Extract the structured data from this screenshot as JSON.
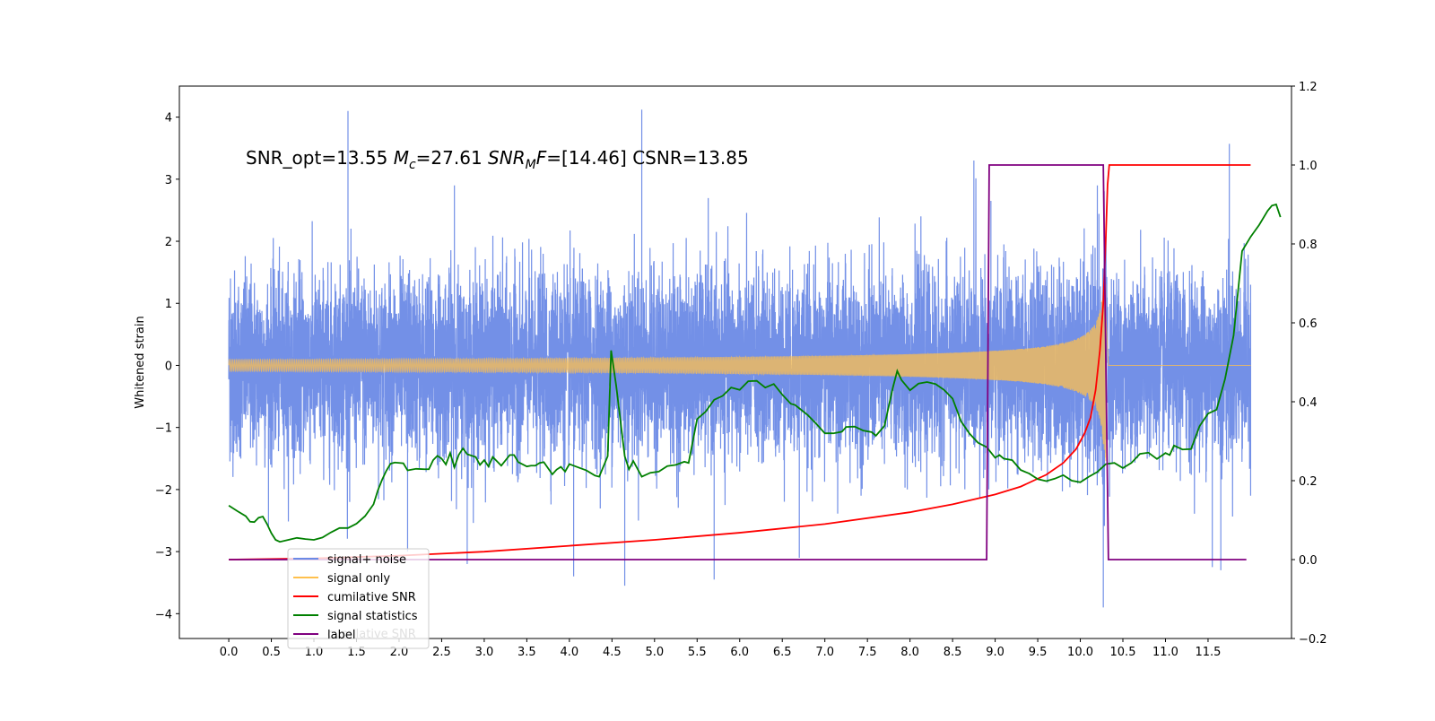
{
  "chart_data": {
    "type": "line",
    "title": "",
    "xlabel": "",
    "ylabel": "Whitened strain",
    "ylabel_right": "",
    "xlim": [
      -0.58,
      12.48
    ],
    "ylim": [
      -4.4,
      4.5
    ],
    "ylim_right": [
      -0.2,
      1.2
    ],
    "x_ticks": [
      "0.0",
      "0.5",
      "1.0",
      "1.5",
      "2.0",
      "2.5",
      "3.0",
      "3.5",
      "4.0",
      "4.5",
      "5.0",
      "5.5",
      "6.0",
      "6.5",
      "7.0",
      "7.5",
      "8.0",
      "8.5",
      "9.0",
      "9.5",
      "10.0",
      "10.5",
      "11.0",
      "11.5"
    ],
    "y_ticks_left": [
      "-4",
      "-3",
      "-2",
      "-1",
      "0",
      "1",
      "2",
      "3",
      "4"
    ],
    "y_ticks_right": [
      "-0.2",
      "0.0",
      "0.2",
      "0.4",
      "0.6",
      "0.8",
      "1.0",
      "1.2"
    ],
    "grid": false,
    "legend_position": "lower-left",
    "annotation": {
      "prefix": "SNR_opt=13.55",
      "mc_symbol": "M",
      "mc_sub": "c",
      "mc_value": "=27.61",
      "snr_symbol": "SNR",
      "snr_sub": "M",
      "snr_f": "F",
      "snr_value": "=[14.46] CSNR=13.85"
    },
    "series": [
      {
        "name": "signal+ noise",
        "color": "#6b8ae6",
        "axis": "left",
        "description_of_data": "broadband noise plus injected chirp; envelope approx ±2, extreme spikes",
        "spikes": [
          [
            0.02,
            1.4
          ],
          [
            0.03,
            -1.4
          ],
          [
            1.4,
            4.1
          ],
          [
            1.42,
            -2.2
          ],
          [
            2.1,
            -3.0
          ],
          [
            2.65,
            2.9
          ],
          [
            2.8,
            -3.2
          ],
          [
            4.05,
            -3.4
          ],
          [
            4.85,
            4.12
          ],
          [
            4.65,
            -3.55
          ],
          [
            5.7,
            -3.45
          ],
          [
            6.7,
            -3.1
          ],
          [
            8.75,
            3.3
          ],
          [
            8.95,
            2.65
          ],
          [
            10.2,
            2.9
          ],
          [
            10.27,
            -3.9
          ],
          [
            10.3,
            1.9
          ],
          [
            11.75,
            3.57
          ],
          [
            11.65,
            -3.3
          ],
          [
            11.55,
            -3.25
          ],
          [
            12.0,
            1.3
          ],
          [
            12.0,
            -2.1
          ]
        ]
      },
      {
        "name": "signal only",
        "color": "#ffc04d",
        "axis": "left",
        "chirp": {
          "t_start": 0.0,
          "t_merge": 10.3,
          "t_end": 12.0,
          "peak_amplitude": 1.55
        }
      },
      {
        "name": "cumilative SNR",
        "color": "#ff0000",
        "axis": "right",
        "points": [
          [
            0.0,
            0.0
          ],
          [
            1.0,
            0.003
          ],
          [
            2.0,
            0.01
          ],
          [
            3.0,
            0.02
          ],
          [
            4.0,
            0.035
          ],
          [
            5.0,
            0.05
          ],
          [
            6.0,
            0.068
          ],
          [
            7.0,
            0.09
          ],
          [
            8.0,
            0.12
          ],
          [
            8.5,
            0.14
          ],
          [
            9.0,
            0.165
          ],
          [
            9.3,
            0.185
          ],
          [
            9.6,
            0.215
          ],
          [
            9.8,
            0.245
          ],
          [
            9.95,
            0.28
          ],
          [
            10.05,
            0.32
          ],
          [
            10.12,
            0.36
          ],
          [
            10.18,
            0.43
          ],
          [
            10.23,
            0.53
          ],
          [
            10.27,
            0.65
          ],
          [
            10.3,
            0.82
          ],
          [
            10.32,
            0.95
          ],
          [
            10.34,
            1.0
          ],
          [
            12.0,
            1.0
          ]
        ]
      },
      {
        "name": "signal statistics",
        "color": "#008000",
        "axis": "right",
        "points": [
          [
            0.0,
            0.137
          ],
          [
            0.1,
            0.123
          ],
          [
            0.2,
            0.11
          ],
          [
            0.25,
            0.096
          ],
          [
            0.3,
            0.095
          ],
          [
            0.35,
            0.106
          ],
          [
            0.4,
            0.109
          ],
          [
            0.45,
            0.09
          ],
          [
            0.5,
            0.067
          ],
          [
            0.55,
            0.05
          ],
          [
            0.6,
            0.045
          ],
          [
            0.7,
            0.05
          ],
          [
            0.8,
            0.055
          ],
          [
            0.9,
            0.052
          ],
          [
            1.0,
            0.05
          ],
          [
            1.1,
            0.056
          ],
          [
            1.2,
            0.069
          ],
          [
            1.3,
            0.08
          ],
          [
            1.4,
            0.08
          ],
          [
            1.5,
            0.091
          ],
          [
            1.6,
            0.11
          ],
          [
            1.7,
            0.14
          ],
          [
            1.75,
            0.175
          ],
          [
            1.8,
            0.202
          ],
          [
            1.85,
            0.225
          ],
          [
            1.9,
            0.243
          ],
          [
            1.95,
            0.246
          ],
          [
            2.05,
            0.244
          ],
          [
            2.1,
            0.226
          ],
          [
            2.2,
            0.23
          ],
          [
            2.3,
            0.229
          ],
          [
            2.35,
            0.229
          ],
          [
            2.4,
            0.252
          ],
          [
            2.45,
            0.263
          ],
          [
            2.5,
            0.256
          ],
          [
            2.55,
            0.241
          ],
          [
            2.6,
            0.27
          ],
          [
            2.65,
            0.234
          ],
          [
            2.7,
            0.265
          ],
          [
            2.75,
            0.282
          ],
          [
            2.8,
            0.267
          ],
          [
            2.9,
            0.26
          ],
          [
            2.95,
            0.24
          ],
          [
            3.0,
            0.252
          ],
          [
            3.05,
            0.236
          ],
          [
            3.1,
            0.26
          ],
          [
            3.2,
            0.238
          ],
          [
            3.3,
            0.265
          ],
          [
            3.35,
            0.265
          ],
          [
            3.4,
            0.247
          ],
          [
            3.5,
            0.236
          ],
          [
            3.55,
            0.238
          ],
          [
            3.6,
            0.238
          ],
          [
            3.65,
            0.245
          ],
          [
            3.7,
            0.247
          ],
          [
            3.8,
            0.216
          ],
          [
            3.85,
            0.228
          ],
          [
            3.9,
            0.235
          ],
          [
            3.95,
            0.223
          ],
          [
            4.0,
            0.242
          ],
          [
            4.1,
            0.234
          ],
          [
            4.2,
            0.226
          ],
          [
            4.3,
            0.213
          ],
          [
            4.35,
            0.21
          ],
          [
            4.45,
            0.262
          ],
          [
            4.49,
            0.53
          ],
          [
            4.55,
            0.44
          ],
          [
            4.65,
            0.262
          ],
          [
            4.7,
            0.229
          ],
          [
            4.75,
            0.25
          ],
          [
            4.8,
            0.23
          ],
          [
            4.85,
            0.21
          ],
          [
            4.95,
            0.22
          ],
          [
            5.05,
            0.223
          ],
          [
            5.15,
            0.237
          ],
          [
            5.25,
            0.24
          ],
          [
            5.35,
            0.248
          ],
          [
            5.4,
            0.245
          ],
          [
            5.5,
            0.356
          ],
          [
            5.6,
            0.375
          ],
          [
            5.7,
            0.405
          ],
          [
            5.8,
            0.415
          ],
          [
            5.9,
            0.436
          ],
          [
            6.0,
            0.43
          ],
          [
            6.1,
            0.452
          ],
          [
            6.2,
            0.453
          ],
          [
            6.3,
            0.436
          ],
          [
            6.4,
            0.445
          ],
          [
            6.5,
            0.418
          ],
          [
            6.6,
            0.395
          ],
          [
            6.65,
            0.392
          ],
          [
            6.8,
            0.366
          ],
          [
            6.9,
            0.344
          ],
          [
            7.0,
            0.32
          ],
          [
            7.1,
            0.32
          ],
          [
            7.2,
            0.324
          ],
          [
            7.25,
            0.336
          ],
          [
            7.35,
            0.337
          ],
          [
            7.45,
            0.327
          ],
          [
            7.55,
            0.323
          ],
          [
            7.6,
            0.314
          ],
          [
            7.7,
            0.339
          ],
          [
            7.8,
            0.437
          ],
          [
            7.85,
            0.478
          ],
          [
            7.9,
            0.455
          ],
          [
            8.0,
            0.429
          ],
          [
            8.1,
            0.446
          ],
          [
            8.2,
            0.45
          ],
          [
            8.3,
            0.445
          ],
          [
            8.4,
            0.43
          ],
          [
            8.5,
            0.408
          ],
          [
            8.6,
            0.35
          ],
          [
            8.7,
            0.319
          ],
          [
            8.8,
            0.296
          ],
          [
            8.9,
            0.285
          ],
          [
            9.0,
            0.258
          ],
          [
            9.05,
            0.265
          ],
          [
            9.1,
            0.256
          ],
          [
            9.2,
            0.252
          ],
          [
            9.3,
            0.227
          ],
          [
            9.4,
            0.218
          ],
          [
            9.5,
            0.204
          ],
          [
            9.6,
            0.199
          ],
          [
            9.7,
            0.205
          ],
          [
            9.8,
            0.214
          ],
          [
            9.9,
            0.2
          ],
          [
            10.0,
            0.196
          ],
          [
            10.1,
            0.21
          ],
          [
            10.2,
            0.222
          ],
          [
            10.3,
            0.242
          ],
          [
            10.4,
            0.245
          ],
          [
            10.5,
            0.232
          ],
          [
            10.6,
            0.245
          ],
          [
            10.7,
            0.268
          ],
          [
            10.8,
            0.271
          ],
          [
            10.9,
            0.255
          ],
          [
            11.0,
            0.27
          ],
          [
            11.05,
            0.265
          ],
          [
            11.1,
            0.289
          ],
          [
            11.2,
            0.279
          ],
          [
            11.3,
            0.28
          ],
          [
            11.4,
            0.338
          ],
          [
            11.5,
            0.37
          ],
          [
            11.6,
            0.38
          ],
          [
            11.7,
            0.458
          ],
          [
            11.8,
            0.568
          ],
          [
            11.9,
            0.782
          ],
          [
            12.0,
            0.818
          ],
          [
            12.1,
            0.848
          ],
          [
            12.2,
            0.884
          ],
          [
            12.25,
            0.897
          ],
          [
            12.3,
            0.9
          ],
          [
            12.35,
            0.868
          ]
        ]
      },
      {
        "name": "label",
        "color": "#800080",
        "axis": "right",
        "points": [
          [
            0.0,
            0.0
          ],
          [
            8.9,
            0.0
          ],
          [
            8.93,
            1.0
          ],
          [
            10.27,
            1.0
          ],
          [
            10.33,
            0.0
          ],
          [
            11.95,
            0.0
          ]
        ]
      }
    ],
    "legend_overlap_text": "cumilative SNR"
  }
}
